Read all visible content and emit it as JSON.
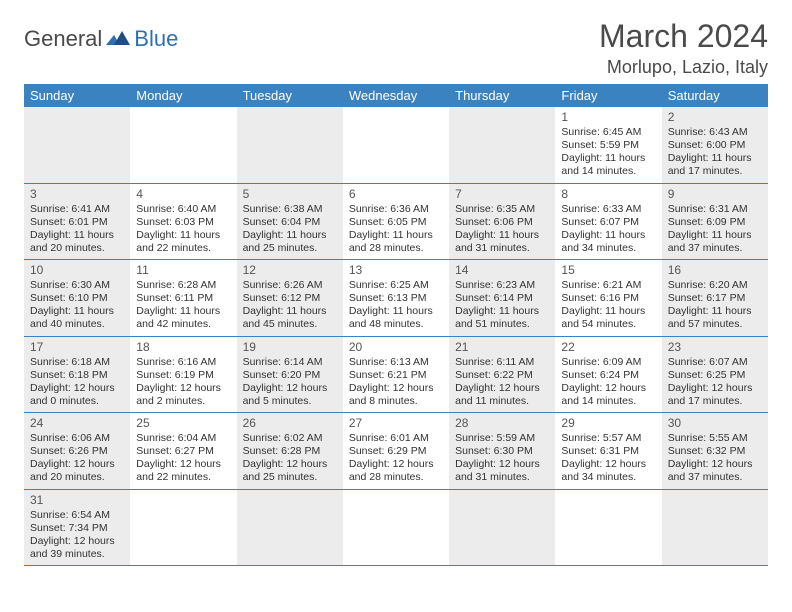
{
  "brand": {
    "text1": "General",
    "text2": "Blue"
  },
  "title": "March 2024",
  "location": "Morlupo, Lazio, Italy",
  "colors": {
    "headerBg": "#3b83c0",
    "headerFg": "#ffffff",
    "rowBorder": "#3b83c0",
    "shadedBg": "#ececec",
    "pageBg": "#ffffff",
    "textDark": "#4a4a4a",
    "brandBlue": "#2f6fb0"
  },
  "dayHeaders": [
    "Sunday",
    "Monday",
    "Tuesday",
    "Wednesday",
    "Thursday",
    "Friday",
    "Saturday"
  ],
  "weeks": [
    [
      {
        "shaded": true
      },
      {
        "shaded": false
      },
      {
        "shaded": true
      },
      {
        "shaded": false
      },
      {
        "shaded": true
      },
      {
        "shaded": false,
        "num": "1",
        "sunrise": "Sunrise: 6:45 AM",
        "sunset": "Sunset: 5:59 PM",
        "day1": "Daylight: 11 hours",
        "day2": "and 14 minutes."
      },
      {
        "shaded": true,
        "num": "2",
        "sunrise": "Sunrise: 6:43 AM",
        "sunset": "Sunset: 6:00 PM",
        "day1": "Daylight: 11 hours",
        "day2": "and 17 minutes."
      }
    ],
    [
      {
        "shaded": true,
        "num": "3",
        "sunrise": "Sunrise: 6:41 AM",
        "sunset": "Sunset: 6:01 PM",
        "day1": "Daylight: 11 hours",
        "day2": "and 20 minutes."
      },
      {
        "shaded": false,
        "num": "4",
        "sunrise": "Sunrise: 6:40 AM",
        "sunset": "Sunset: 6:03 PM",
        "day1": "Daylight: 11 hours",
        "day2": "and 22 minutes."
      },
      {
        "shaded": true,
        "num": "5",
        "sunrise": "Sunrise: 6:38 AM",
        "sunset": "Sunset: 6:04 PM",
        "day1": "Daylight: 11 hours",
        "day2": "and 25 minutes."
      },
      {
        "shaded": false,
        "num": "6",
        "sunrise": "Sunrise: 6:36 AM",
        "sunset": "Sunset: 6:05 PM",
        "day1": "Daylight: 11 hours",
        "day2": "and 28 minutes."
      },
      {
        "shaded": true,
        "num": "7",
        "sunrise": "Sunrise: 6:35 AM",
        "sunset": "Sunset: 6:06 PM",
        "day1": "Daylight: 11 hours",
        "day2": "and 31 minutes."
      },
      {
        "shaded": false,
        "num": "8",
        "sunrise": "Sunrise: 6:33 AM",
        "sunset": "Sunset: 6:07 PM",
        "day1": "Daylight: 11 hours",
        "day2": "and 34 minutes."
      },
      {
        "shaded": true,
        "num": "9",
        "sunrise": "Sunrise: 6:31 AM",
        "sunset": "Sunset: 6:09 PM",
        "day1": "Daylight: 11 hours",
        "day2": "and 37 minutes."
      }
    ],
    [
      {
        "shaded": true,
        "num": "10",
        "sunrise": "Sunrise: 6:30 AM",
        "sunset": "Sunset: 6:10 PM",
        "day1": "Daylight: 11 hours",
        "day2": "and 40 minutes."
      },
      {
        "shaded": false,
        "num": "11",
        "sunrise": "Sunrise: 6:28 AM",
        "sunset": "Sunset: 6:11 PM",
        "day1": "Daylight: 11 hours",
        "day2": "and 42 minutes."
      },
      {
        "shaded": true,
        "num": "12",
        "sunrise": "Sunrise: 6:26 AM",
        "sunset": "Sunset: 6:12 PM",
        "day1": "Daylight: 11 hours",
        "day2": "and 45 minutes."
      },
      {
        "shaded": false,
        "num": "13",
        "sunrise": "Sunrise: 6:25 AM",
        "sunset": "Sunset: 6:13 PM",
        "day1": "Daylight: 11 hours",
        "day2": "and 48 minutes."
      },
      {
        "shaded": true,
        "num": "14",
        "sunrise": "Sunrise: 6:23 AM",
        "sunset": "Sunset: 6:14 PM",
        "day1": "Daylight: 11 hours",
        "day2": "and 51 minutes."
      },
      {
        "shaded": false,
        "num": "15",
        "sunrise": "Sunrise: 6:21 AM",
        "sunset": "Sunset: 6:16 PM",
        "day1": "Daylight: 11 hours",
        "day2": "and 54 minutes."
      },
      {
        "shaded": true,
        "num": "16",
        "sunrise": "Sunrise: 6:20 AM",
        "sunset": "Sunset: 6:17 PM",
        "day1": "Daylight: 11 hours",
        "day2": "and 57 minutes."
      }
    ],
    [
      {
        "shaded": true,
        "num": "17",
        "sunrise": "Sunrise: 6:18 AM",
        "sunset": "Sunset: 6:18 PM",
        "day1": "Daylight: 12 hours",
        "day2": "and 0 minutes."
      },
      {
        "shaded": false,
        "num": "18",
        "sunrise": "Sunrise: 6:16 AM",
        "sunset": "Sunset: 6:19 PM",
        "day1": "Daylight: 12 hours",
        "day2": "and 2 minutes."
      },
      {
        "shaded": true,
        "num": "19",
        "sunrise": "Sunrise: 6:14 AM",
        "sunset": "Sunset: 6:20 PM",
        "day1": "Daylight: 12 hours",
        "day2": "and 5 minutes."
      },
      {
        "shaded": false,
        "num": "20",
        "sunrise": "Sunrise: 6:13 AM",
        "sunset": "Sunset: 6:21 PM",
        "day1": "Daylight: 12 hours",
        "day2": "and 8 minutes."
      },
      {
        "shaded": true,
        "num": "21",
        "sunrise": "Sunrise: 6:11 AM",
        "sunset": "Sunset: 6:22 PM",
        "day1": "Daylight: 12 hours",
        "day2": "and 11 minutes."
      },
      {
        "shaded": false,
        "num": "22",
        "sunrise": "Sunrise: 6:09 AM",
        "sunset": "Sunset: 6:24 PM",
        "day1": "Daylight: 12 hours",
        "day2": "and 14 minutes."
      },
      {
        "shaded": true,
        "num": "23",
        "sunrise": "Sunrise: 6:07 AM",
        "sunset": "Sunset: 6:25 PM",
        "day1": "Daylight: 12 hours",
        "day2": "and 17 minutes."
      }
    ],
    [
      {
        "shaded": true,
        "num": "24",
        "sunrise": "Sunrise: 6:06 AM",
        "sunset": "Sunset: 6:26 PM",
        "day1": "Daylight: 12 hours",
        "day2": "and 20 minutes."
      },
      {
        "shaded": false,
        "num": "25",
        "sunrise": "Sunrise: 6:04 AM",
        "sunset": "Sunset: 6:27 PM",
        "day1": "Daylight: 12 hours",
        "day2": "and 22 minutes."
      },
      {
        "shaded": true,
        "num": "26",
        "sunrise": "Sunrise: 6:02 AM",
        "sunset": "Sunset: 6:28 PM",
        "day1": "Daylight: 12 hours",
        "day2": "and 25 minutes."
      },
      {
        "shaded": false,
        "num": "27",
        "sunrise": "Sunrise: 6:01 AM",
        "sunset": "Sunset: 6:29 PM",
        "day1": "Daylight: 12 hours",
        "day2": "and 28 minutes."
      },
      {
        "shaded": true,
        "num": "28",
        "sunrise": "Sunrise: 5:59 AM",
        "sunset": "Sunset: 6:30 PM",
        "day1": "Daylight: 12 hours",
        "day2": "and 31 minutes."
      },
      {
        "shaded": false,
        "num": "29",
        "sunrise": "Sunrise: 5:57 AM",
        "sunset": "Sunset: 6:31 PM",
        "day1": "Daylight: 12 hours",
        "day2": "and 34 minutes."
      },
      {
        "shaded": true,
        "num": "30",
        "sunrise": "Sunrise: 5:55 AM",
        "sunset": "Sunset: 6:32 PM",
        "day1": "Daylight: 12 hours",
        "day2": "and 37 minutes."
      }
    ],
    [
      {
        "shaded": true,
        "num": "31",
        "sunrise": "Sunrise: 6:54 AM",
        "sunset": "Sunset: 7:34 PM",
        "day1": "Daylight: 12 hours",
        "day2": "and 39 minutes."
      },
      {
        "shaded": false
      },
      {
        "shaded": true
      },
      {
        "shaded": false
      },
      {
        "shaded": true
      },
      {
        "shaded": false
      },
      {
        "shaded": true
      }
    ]
  ]
}
